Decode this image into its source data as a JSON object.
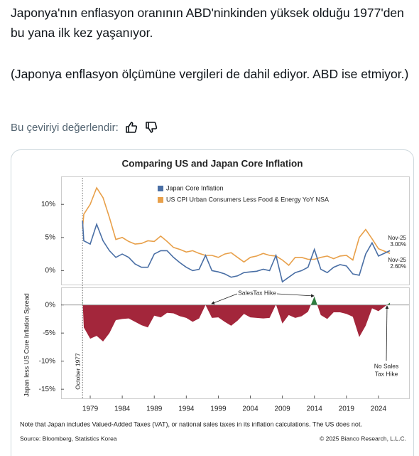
{
  "tweet": {
    "paragraphs": [
      "Japonya'nın enflasyon oranının ABD'ninkinden yüksek olduğu 1977'den bu yana ilk kez yaşanıyor.",
      "(Japonya enflasyon ölçümüne vergileri de dahil ediyor. ABD ise etmiyor.)"
    ],
    "rate_prompt": "Bu çeviriyi değerlendir:"
  },
  "chart_data": [
    {
      "type": "line",
      "title": "Comparing US and Japan Core Inflation",
      "x": [
        1977.8,
        1978,
        1979,
        1980,
        1981,
        1982,
        1983,
        1984,
        1985,
        1986,
        1987,
        1988,
        1989,
        1990,
        1991,
        1992,
        1993,
        1994,
        1995,
        1996,
        1997,
        1998,
        1999,
        2000,
        2001,
        2002,
        2003,
        2004,
        2005,
        2006,
        2007,
        2008,
        2009,
        2010,
        2011,
        2012,
        2013,
        2014,
        2015,
        2016,
        2017,
        2018,
        2019,
        2020,
        2021,
        2022,
        2023,
        2024,
        2025.8
      ],
      "xlim": [
        1977,
        2028.5
      ],
      "ylim": [
        -2,
        14
      ],
      "yticks": [
        {
          "value": 0,
          "label": "0%"
        },
        {
          "value": 5,
          "label": "5%"
        },
        {
          "value": 10,
          "label": "10%"
        }
      ],
      "series": [
        {
          "name": "Japan Core Inflation",
          "color": "#4a6fa5",
          "end_date": "Nov-25",
          "values": [
            7.5,
            4.5,
            4,
            7,
            4.5,
            3,
            2,
            2.5,
            2,
            1,
            0.5,
            0.5,
            2.5,
            3,
            3,
            2,
            1.2,
            0.5,
            0,
            0.2,
            2.3,
            0,
            -0.2,
            -0.5,
            -1,
            -0.8,
            -0.3,
            -0.2,
            -0.1,
            0.2,
            0,
            2.3,
            -1.7,
            -1,
            -0.3,
            0,
            0.5,
            3.2,
            0.2,
            -0.3,
            0.5,
            0.9,
            0.7,
            -0.5,
            -0.7,
            2.5,
            4.2,
            2.2,
            3.0
          ],
          "value_labels": [
            null,
            null,
            null,
            null,
            null,
            null,
            null,
            null,
            null,
            null,
            null,
            null,
            null,
            null,
            null,
            null,
            null,
            null,
            null,
            null,
            null,
            null,
            null,
            null,
            null,
            null,
            null,
            null,
            null,
            null,
            null,
            null,
            null,
            null,
            null,
            null,
            null,
            null,
            null,
            null,
            null,
            null,
            null,
            null,
            null,
            null,
            null,
            null,
            "3.00%"
          ]
        },
        {
          "name": "US CPI Urban Consumers Less Food & Energy YoY NSA",
          "color": "#e8a04a",
          "end_date": "Nov-25",
          "values": [
            6.3,
            8.5,
            10,
            12.5,
            11,
            8,
            4.7,
            5,
            4.4,
            4,
            4.1,
            4.5,
            4.4,
            5.2,
            4.4,
            3.5,
            3.2,
            2.8,
            3,
            2.6,
            2.3,
            2.3,
            2,
            2.5,
            2.7,
            2,
            1.3,
            2,
            2.2,
            2.6,
            2.3,
            2.2,
            1.6,
            0.8,
            2,
            2,
            1.7,
            1.7,
            2,
            2.2,
            1.8,
            2.2,
            2.3,
            1.6,
            5,
            6.2,
            4.8,
            3.3,
            2.6
          ],
          "value_labels": [
            null,
            null,
            null,
            null,
            null,
            null,
            null,
            null,
            null,
            null,
            null,
            null,
            null,
            null,
            null,
            null,
            null,
            null,
            null,
            null,
            null,
            null,
            null,
            null,
            null,
            null,
            null,
            null,
            null,
            null,
            null,
            null,
            null,
            null,
            null,
            null,
            null,
            null,
            null,
            null,
            null,
            null,
            null,
            null,
            null,
            null,
            null,
            null,
            "2.60%"
          ]
        }
      ],
      "note": "Note that Japan includes Valued-Added Taxes (VAT), or national sales taxes in its inflation calculations. The US does not.",
      "source": "Source: Bloomberg, Statistics Korea",
      "credit": "© 2025 Bianco Research, L.L.C."
    },
    {
      "type": "area",
      "ylabel": "Japan less US Core Inflation Spread",
      "x": [
        1977.8,
        1978,
        1979,
        1980,
        1981,
        1982,
        1983,
        1984,
        1985,
        1986,
        1987,
        1988,
        1989,
        1990,
        1991,
        1992,
        1993,
        1994,
        1995,
        1996,
        1997,
        1998,
        1999,
        2000,
        2001,
        2002,
        2003,
        2004,
        2005,
        2006,
        2007,
        2008,
        2009,
        2010,
        2011,
        2012,
        2013,
        2014,
        2015,
        2016,
        2017,
        2018,
        2019,
        2020,
        2021,
        2022,
        2023,
        2024,
        2025.8
      ],
      "values": [
        1.2,
        -4,
        -6,
        -5.5,
        -6.5,
        -5,
        -2.7,
        -2.5,
        -2.4,
        -3,
        -3.6,
        -4,
        -1.9,
        -2.2,
        -1.4,
        -1.5,
        -2,
        -2.3,
        -3,
        -2.4,
        0,
        -2.3,
        -2.2,
        -3,
        -3.7,
        -2.8,
        -1.6,
        -2.2,
        -2.3,
        -2.4,
        -2.3,
        0.1,
        -3.3,
        -1.8,
        -2.3,
        -2,
        -1.2,
        1.5,
        -1.8,
        -2.5,
        -1.3,
        -1.3,
        -1.6,
        -2.1,
        -5.7,
        -3.7,
        -0.6,
        -1.1,
        0.4
      ],
      "color_negative": "#a3263b",
      "color_positive": "#2e7d3e",
      "xlim": [
        1977,
        2028.5
      ],
      "ylim": [
        -16.5,
        3
      ],
      "xticks": [
        1979,
        1984,
        1989,
        1994,
        1999,
        2004,
        2009,
        2014,
        2019,
        2024
      ],
      "yticks": [
        {
          "value": 0,
          "label": "0%"
        },
        {
          "value": -5,
          "label": "-5%"
        },
        {
          "value": -10,
          "label": "-10%"
        },
        {
          "value": -15,
          "label": "-15%"
        }
      ],
      "annotations": {
        "start": "October 1977",
        "tax_hike": "SalesTax Hike",
        "no_tax_hike_1": "No Sales",
        "no_tax_hike_2": "Tax Hike"
      }
    }
  ]
}
